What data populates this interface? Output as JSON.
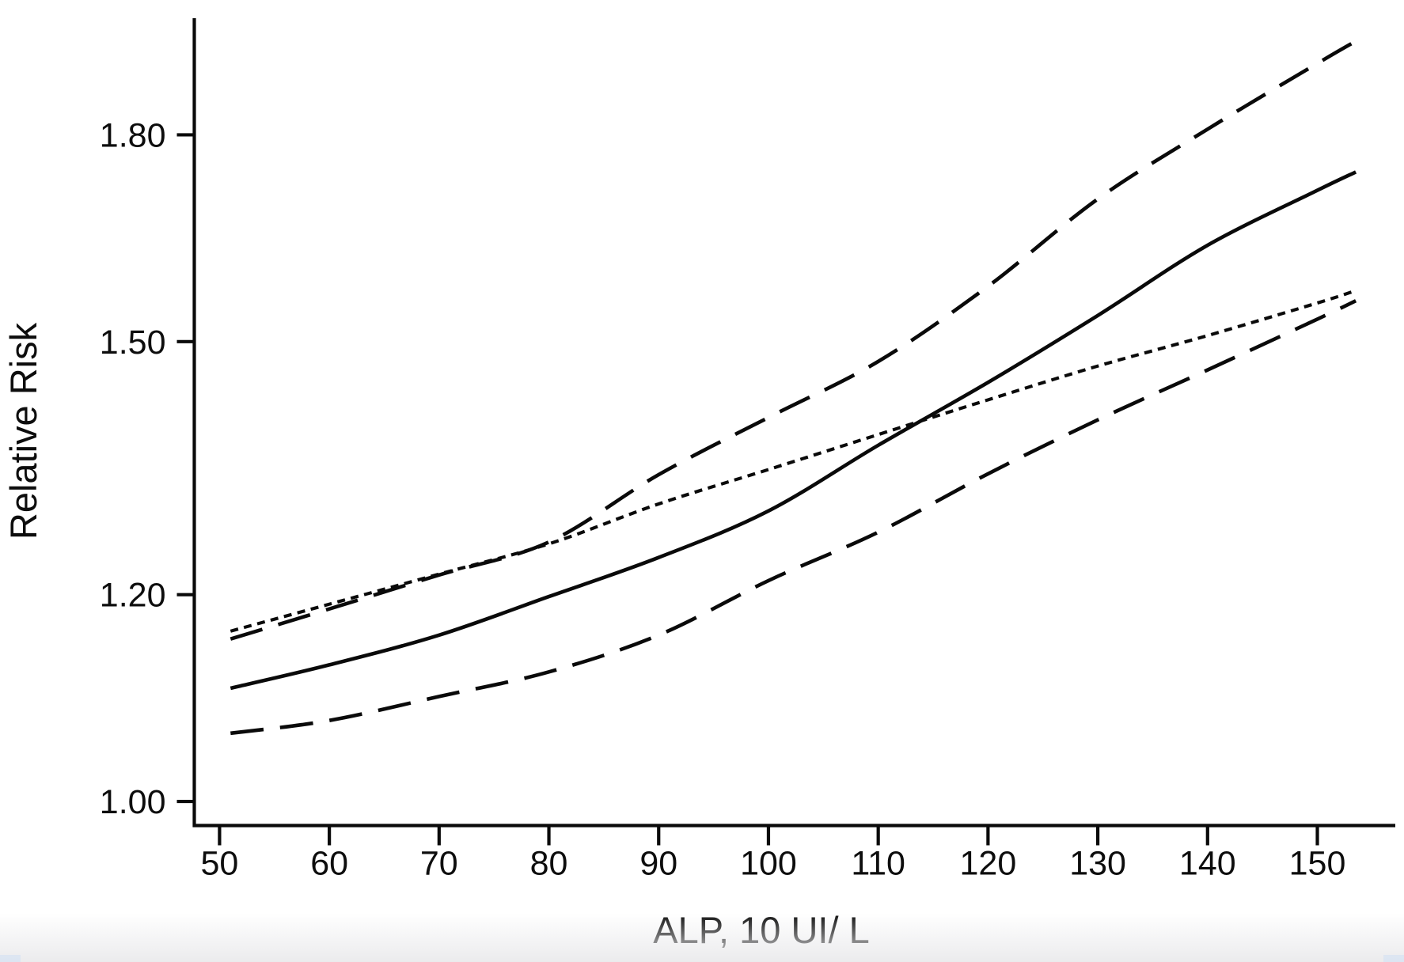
{
  "page": {
    "background": "#ffffff",
    "bottom_fade_color": "#eaeaec",
    "corner_tint": "#d9e4f2"
  },
  "figure": {
    "line_color": "#0a0a0a"
  },
  "chart_data": {
    "type": "line",
    "title": "",
    "xlabel": "ALP, 10 UI/ L",
    "ylabel": "Relative Risk",
    "x_scale": {
      "type": "linear",
      "min": 47.7,
      "max": 157.1
    },
    "y_scale": {
      "type": "log",
      "min": 0.979,
      "max": 1.995
    },
    "x_ticks": [
      {
        "v": 50,
        "label": "50"
      },
      {
        "v": 60,
        "label": "60"
      },
      {
        "v": 70,
        "label": "70"
      },
      {
        "v": 80,
        "label": "80"
      },
      {
        "v": 90,
        "label": "90"
      },
      {
        "v": 100,
        "label": "100"
      },
      {
        "v": 110,
        "label": "110"
      },
      {
        "v": 120,
        "label": "120"
      },
      {
        "v": 130,
        "label": "130"
      },
      {
        "v": 140,
        "label": "140"
      },
      {
        "v": 150,
        "label": "150"
      }
    ],
    "y_ticks": [
      {
        "v": 1.0,
        "label": "1.00"
      },
      {
        "v": 1.2,
        "label": "1.20"
      },
      {
        "v": 1.5,
        "label": "1.50"
      },
      {
        "v": 1.8,
        "label": "1.80"
      }
    ],
    "x": [
      51,
      60,
      70,
      80,
      90,
      100,
      110,
      120,
      130,
      140,
      150,
      153.5
    ],
    "series": [
      {
        "id": "solid-center-curve",
        "style": "solid",
        "values": [
          1.105,
          1.128,
          1.158,
          1.198,
          1.24,
          1.292,
          1.369,
          1.447,
          1.535,
          1.633,
          1.714,
          1.742
        ]
      },
      {
        "id": "long-dash-upper-curve",
        "style": "long-dash",
        "values": [
          1.154,
          1.185,
          1.221,
          1.257,
          1.334,
          1.403,
          1.474,
          1.575,
          1.701,
          1.809,
          1.917,
          1.955
        ]
      },
      {
        "id": "long-dash-lower-curve",
        "style": "long-dash",
        "values": [
          1.062,
          1.074,
          1.097,
          1.121,
          1.158,
          1.215,
          1.268,
          1.335,
          1.4,
          1.463,
          1.53,
          1.555
        ]
      },
      {
        "id": "dotted-straight-curve",
        "style": "dotted",
        "values": [
          1.162,
          1.19,
          1.222,
          1.255,
          1.3,
          1.34,
          1.382,
          1.425,
          1.468,
          1.508,
          1.552,
          1.569
        ]
      }
    ],
    "layout": {
      "grid": false,
      "legend": false,
      "ylim": [
        0.979,
        1.995
      ],
      "xlim": [
        47.7,
        157.1
      ]
    }
  }
}
